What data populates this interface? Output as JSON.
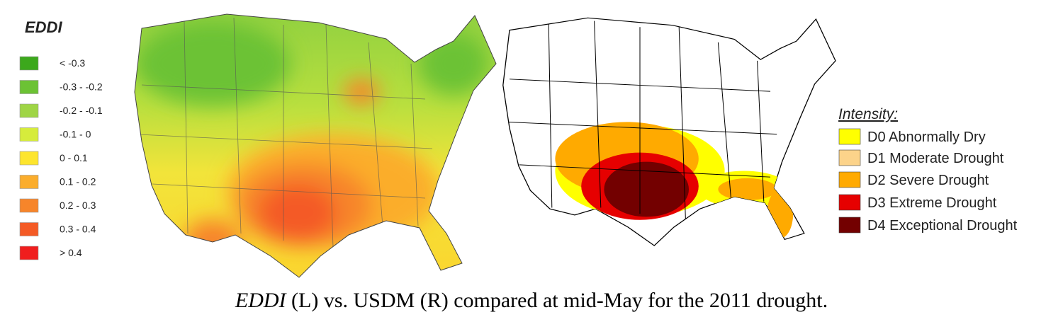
{
  "left_legend": {
    "title": "EDDI",
    "items": [
      {
        "label": "< -0.3",
        "color": "#3ca81c"
      },
      {
        "label": "-0.3 - -0.2",
        "color": "#6cc234"
      },
      {
        "label": "-0.2 - -0.1",
        "color": "#9fd545"
      },
      {
        "label": "-0.1 - 0",
        "color": "#d6ec3c"
      },
      {
        "label": "0 - 0.1",
        "color": "#fde52e"
      },
      {
        "label": "0.1 - 0.2",
        "color": "#fbad2c"
      },
      {
        "label": "0.2 - 0.3",
        "color": "#f7852a"
      },
      {
        "label": "0.3 - 0.4",
        "color": "#f45a25"
      },
      {
        "label": "> 0.4",
        "color": "#f01e1e"
      }
    ]
  },
  "right_legend": {
    "title": "Intensity:",
    "items": [
      {
        "label": "D0 Abnormally Dry",
        "color": "#ffff00"
      },
      {
        "label": "D1 Moderate Drought",
        "color": "#fcd38a"
      },
      {
        "label": "D2 Severe Drought",
        "color": "#ffaa00"
      },
      {
        "label": "D3 Extreme Drought",
        "color": "#e60000"
      },
      {
        "label": "D4 Exceptional Drought",
        "color": "#730000"
      }
    ]
  },
  "caption": {
    "emphasis": "EDDI",
    "text": " (L) vs. USDM (R) compared at mid-May for the 2011 drought."
  }
}
